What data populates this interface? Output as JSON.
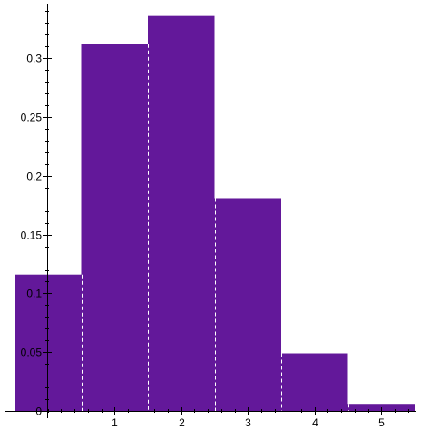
{
  "chart_data": {
    "type": "bar",
    "title": "",
    "xlabel": "",
    "ylabel": "",
    "bar_color": "#63189A",
    "bins": [
      {
        "x0": -0.5,
        "x1": 0.5,
        "value": 0.116
      },
      {
        "x0": 0.5,
        "x1": 1.5,
        "value": 0.312
      },
      {
        "x0": 1.5,
        "x1": 2.5,
        "value": 0.336
      },
      {
        "x0": 2.5,
        "x1": 3.5,
        "value": 0.181
      },
      {
        "x0": 3.5,
        "x1": 4.5,
        "value": 0.049
      },
      {
        "x0": 4.5,
        "x1": 5.5,
        "value": 0.006
      }
    ],
    "xlim": [
      -0.5,
      5.5
    ],
    "ylim": [
      0,
      0.345
    ],
    "x_ticks": [
      {
        "value": 1,
        "label": "1"
      },
      {
        "value": 2,
        "label": "2"
      },
      {
        "value": 3,
        "label": "3"
      },
      {
        "value": 4,
        "label": "4"
      },
      {
        "value": 5,
        "label": "5"
      }
    ],
    "y_ticks": [
      {
        "value": 0,
        "label": "0"
      },
      {
        "value": 0.05,
        "label": "0.05"
      },
      {
        "value": 0.1,
        "label": "0.1"
      },
      {
        "value": 0.15,
        "label": "0.15"
      },
      {
        "value": 0.2,
        "label": "0.2"
      },
      {
        "value": 0.25,
        "label": "0.25"
      },
      {
        "value": 0.3,
        "label": "0.3"
      }
    ],
    "grid": false,
    "legend": "none"
  }
}
